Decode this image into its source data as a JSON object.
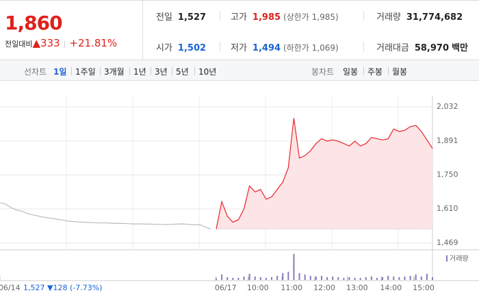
{
  "quote": {
    "price": "1,860",
    "change_label": "전일대비",
    "change": "333",
    "change_pct": "+21.81%"
  },
  "stats": [
    {
      "label": "전일",
      "value": "1,527",
      "color": "#222222"
    },
    {
      "label": "고가",
      "value": "1,985",
      "note": "(상한가 1,985)",
      "color": "#e0201b"
    },
    {
      "label": "거래량",
      "value": "31,774,682",
      "color": "#222222"
    },
    {
      "label": "시가",
      "value": "1,502",
      "color": "#1a63d6"
    },
    {
      "label": "저가",
      "value": "1,494",
      "note": "(하한가 1,069)",
      "color": "#1a63d6"
    },
    {
      "label": "거래대금",
      "value": "58,970",
      "unit": "백만",
      "color": "#222222"
    }
  ],
  "tabs": {
    "line_label": "선차트",
    "line": [
      "1일",
      "1주일",
      "3개월",
      "1년",
      "3년",
      "5년",
      "10년"
    ],
    "selected": "1일",
    "candle_label": "봉차트",
    "candle": [
      "일봉",
      "주봉",
      "월봉"
    ]
  },
  "prior_day": {
    "close": "1,527",
    "change": "128",
    "change_pct": "(-7.73%)"
  },
  "chart_data": {
    "type": "line",
    "xlim": [
      0,
      78
    ],
    "ylim": [
      1469,
      2032
    ],
    "yticks": [
      {
        "value": 2032,
        "label": "2,032"
      },
      {
        "value": 1891,
        "label": "1,891"
      },
      {
        "value": 1750,
        "label": "1,750"
      },
      {
        "value": 1610,
        "label": "1,610"
      },
      {
        "value": 1469,
        "label": "1,469"
      }
    ],
    "xticks": [
      {
        "value": 1.7,
        "label": "06/14"
      },
      {
        "value": 40.7,
        "label": "06/17"
      },
      {
        "value": 46.5,
        "label": "10:00"
      },
      {
        "value": 52.6,
        "label": "11:00"
      },
      {
        "value": 58.5,
        "label": "12:00"
      },
      {
        "value": 64.4,
        "label": "13:00"
      },
      {
        "value": 70.5,
        "label": "14:00"
      },
      {
        "value": 76.4,
        "label": "15:00"
      }
    ],
    "grid": true,
    "reference_line": 1527,
    "volume_label": "거래량",
    "volume_color": "#8a78bd",
    "series": [
      {
        "color": "#bbbbbb",
        "x": [
          0,
          1,
          2,
          3,
          4,
          5,
          6,
          7,
          8,
          9,
          10,
          11,
          12,
          13,
          14,
          15,
          16,
          17,
          18,
          19,
          20,
          21,
          22,
          23,
          24,
          25,
          26,
          27,
          28,
          29,
          30,
          31,
          32,
          33,
          34,
          35,
          36,
          37,
          38
        ],
        "values": [
          1635,
          1630,
          1615,
          1605,
          1600,
          1590,
          1585,
          1580,
          1575,
          1572,
          1568,
          1565,
          1560,
          1558,
          1556,
          1555,
          1554,
          1553,
          1552,
          1552,
          1551,
          1550,
          1550,
          1549,
          1548,
          1548,
          1547,
          1547,
          1546,
          1546,
          1545,
          1546,
          1547,
          1548,
          1546,
          1544,
          1545,
          1535,
          1527
        ]
      },
      {
        "color": "#e8242b",
        "fill": "#fde4e6",
        "x": [
          39,
          40,
          41,
          42,
          43,
          44,
          45,
          46,
          47,
          48,
          49,
          50,
          51,
          52,
          53,
          54,
          55,
          56,
          57,
          58,
          59,
          60,
          61,
          62,
          63,
          64,
          65,
          66,
          67,
          68,
          69,
          70,
          71,
          72,
          73,
          74,
          75,
          76,
          77,
          78
        ],
        "values": [
          1527,
          1640,
          1580,
          1555,
          1565,
          1610,
          1705,
          1680,
          1690,
          1650,
          1660,
          1690,
          1720,
          1780,
          1985,
          1820,
          1830,
          1850,
          1880,
          1900,
          1890,
          1895,
          1890,
          1880,
          1870,
          1890,
          1870,
          1880,
          1905,
          1900,
          1895,
          1900,
          1940,
          1930,
          1935,
          1950,
          1955,
          1930,
          1895,
          1860
        ],
        "volume": [
          2,
          8,
          4,
          3,
          3,
          5,
          9,
          5,
          4,
          3,
          4,
          6,
          10,
          12,
          38,
          10,
          8,
          6,
          5,
          6,
          4,
          5,
          4,
          3,
          4,
          3,
          3,
          4,
          5,
          3,
          4,
          6,
          5,
          4,
          5,
          6,
          8,
          5,
          9,
          4
        ]
      }
    ]
  }
}
